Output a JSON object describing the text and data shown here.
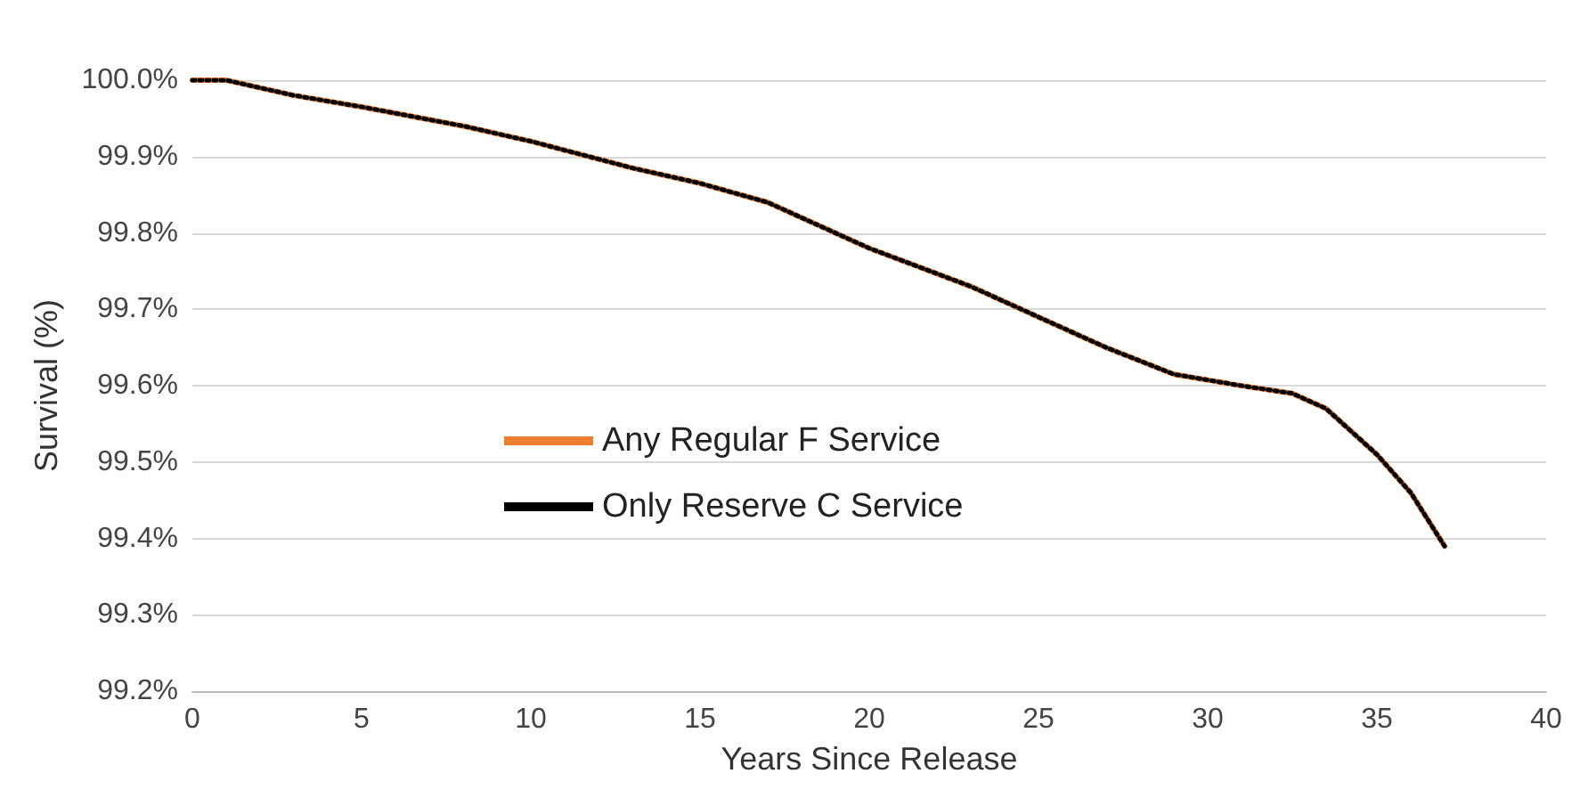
{
  "chart_data": {
    "type": "line",
    "xlabel": "Years Since Release",
    "ylabel": "Survival (%)",
    "x": [
      0,
      1,
      2,
      3,
      5,
      8,
      10,
      13,
      15,
      17,
      20,
      23,
      25,
      27,
      29,
      31,
      32.5,
      33.5,
      34,
      35,
      36,
      37
    ],
    "series": [
      {
        "name": "Any Regular F Service",
        "color": "#ed7d31",
        "line_style": "solid",
        "values": [
          100.0,
          100.0,
          99.99,
          99.98,
          99.965,
          99.94,
          99.92,
          99.885,
          99.865,
          99.84,
          99.78,
          99.73,
          99.69,
          99.65,
          99.615,
          99.6,
          99.59,
          99.57,
          99.55,
          99.51,
          99.46,
          99.39
        ]
      },
      {
        "name": "Only Reserve C Service",
        "color": "#000000",
        "line_style": "dotted",
        "values": [
          100.0,
          100.0,
          99.99,
          99.98,
          99.965,
          99.94,
          99.92,
          99.885,
          99.865,
          99.84,
          99.78,
          99.73,
          99.69,
          99.65,
          99.615,
          99.6,
          99.59,
          99.57,
          99.55,
          99.51,
          99.46,
          99.39
        ]
      }
    ],
    "xlim": [
      0,
      40
    ],
    "xticks": [
      0,
      5,
      10,
      15,
      20,
      25,
      30,
      35,
      40
    ],
    "ylim": [
      99.2,
      100.0
    ],
    "yticks": [
      {
        "value": 99.2,
        "label": "99.2%"
      },
      {
        "value": 99.3,
        "label": "99.3%"
      },
      {
        "value": 99.4,
        "label": "99.4%"
      },
      {
        "value": 99.5,
        "label": "99.5%"
      },
      {
        "value": 99.6,
        "label": "99.6%"
      },
      {
        "value": 99.7,
        "label": "99.7%"
      },
      {
        "value": 99.8,
        "label": "99.8%"
      },
      {
        "value": 99.9,
        "label": "99.9%"
      },
      {
        "value": 100.0,
        "label": "100.0%"
      }
    ],
    "grid": "y",
    "legend": "left",
    "marker": "none"
  }
}
